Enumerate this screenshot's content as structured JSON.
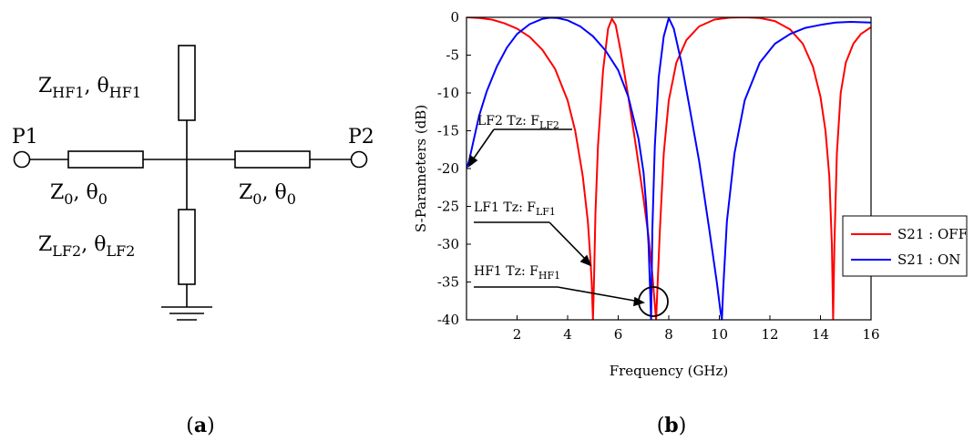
{
  "schematic": {
    "port1": "P1",
    "port2": "P2",
    "stub_hf1": {
      "z": "Z",
      "z_sub": "HF1",
      "sep": ", ",
      "theta": "θ",
      "theta_sub": "HF1"
    },
    "line_left": {
      "z": "Z",
      "z_sub": "0",
      "sep": ", ",
      "theta": "θ",
      "theta_sub": "0"
    },
    "line_right": {
      "z": "Z",
      "z_sub": "0",
      "sep": ", ",
      "theta": "θ",
      "theta_sub": "0"
    },
    "stub_lf2": {
      "z": "Z",
      "z_sub": "LF2",
      "sep": ", ",
      "theta": "θ",
      "theta_sub": "LF2"
    }
  },
  "captions": {
    "a": "a",
    "b": "b",
    "open": "(",
    "close": ")"
  },
  "annotations": {
    "lf2": {
      "text": "LF2 Tz: F",
      "sub": "LF2"
    },
    "lf1": {
      "text": "LF1 Tz: F",
      "sub": "LF1"
    },
    "hf1": {
      "text": "HF1 Tz: F",
      "sub": "HF1"
    }
  },
  "colors": {
    "off": "#ff0000",
    "on": "#0000ff"
  },
  "chart_data": {
    "type": "line",
    "xlabel": "Frequency (GHz)",
    "ylabel": "S-Parameters (dB)",
    "xlim": [
      0,
      16
    ],
    "ylim": [
      -40,
      0
    ],
    "xticks": [
      2,
      4,
      6,
      8,
      10,
      12,
      14,
      16
    ],
    "yticks": [
      0,
      -5,
      -10,
      -15,
      -20,
      -25,
      -30,
      -35,
      -40
    ],
    "grid": false,
    "legend_position": "right",
    "series": [
      {
        "name": "S21 : OFF",
        "color": "#ff0000",
        "x": [
          0.0,
          0.5,
          1.0,
          1.5,
          2.0,
          2.5,
          3.0,
          3.5,
          4.0,
          4.3,
          4.6,
          4.8,
          4.9,
          4.95,
          5.0,
          5.05,
          5.1,
          5.2,
          5.4,
          5.6,
          5.75,
          5.9,
          6.1,
          6.4,
          6.7,
          7.0,
          7.2,
          7.35,
          7.45,
          7.5,
          7.55,
          7.65,
          7.8,
          8.0,
          8.3,
          8.7,
          9.2,
          9.8,
          10.4,
          11.0,
          11.6,
          12.2,
          12.8,
          13.3,
          13.7,
          14.0,
          14.2,
          14.35,
          14.45,
          14.5,
          14.55,
          14.65,
          14.8,
          15.0,
          15.3,
          15.6,
          16.0
        ],
        "y": [
          0.0,
          -0.1,
          -0.3,
          -0.8,
          -1.5,
          -2.6,
          -4.3,
          -6.8,
          -11.0,
          -15.0,
          -21.0,
          -27.0,
          -32.0,
          -35.0,
          -40.0,
          -34.0,
          -26.0,
          -17.0,
          -7.0,
          -1.5,
          -0.2,
          -1.0,
          -4.5,
          -10.5,
          -17.0,
          -24.0,
          -29.0,
          -34.0,
          -38.0,
          -40.0,
          -36.0,
          -28.0,
          -18.0,
          -11.0,
          -6.0,
          -3.0,
          -1.2,
          -0.3,
          -0.05,
          0.0,
          -0.1,
          -0.5,
          -1.6,
          -3.5,
          -6.5,
          -10.5,
          -15.0,
          -21.0,
          -30.0,
          -40.0,
          -30.0,
          -18.0,
          -10.0,
          -6.0,
          -3.5,
          -2.2,
          -1.3
        ]
      },
      {
        "name": "S21 : ON",
        "color": "#0000ff",
        "x": [
          0.0,
          0.1,
          0.3,
          0.5,
          0.8,
          1.2,
          1.6,
          2.0,
          2.5,
          3.0,
          3.3,
          3.6,
          4.0,
          4.5,
          5.0,
          5.5,
          6.0,
          6.4,
          6.8,
          7.0,
          7.1,
          7.2,
          7.25,
          7.3,
          7.35,
          7.45,
          7.6,
          7.8,
          8.0,
          8.2,
          8.5,
          8.8,
          9.2,
          9.6,
          9.9,
          10.05,
          10.1,
          10.15,
          10.3,
          10.6,
          11.0,
          11.6,
          12.2,
          12.8,
          13.4,
          14.0,
          14.6,
          15.2,
          16.0
        ],
        "y": [
          -20.0,
          -19.0,
          -16.0,
          -13.0,
          -9.8,
          -6.5,
          -4.0,
          -2.2,
          -0.9,
          -0.2,
          -0.05,
          -0.1,
          -0.4,
          -1.2,
          -2.5,
          -4.4,
          -7.0,
          -10.5,
          -16.0,
          -20.5,
          -24.5,
          -30.0,
          -35.0,
          -40.0,
          -28.0,
          -17.0,
          -8.0,
          -2.5,
          -0.1,
          -1.5,
          -6.0,
          -11.5,
          -19.0,
          -28.0,
          -35.0,
          -39.0,
          -40.0,
          -36.0,
          -27.0,
          -18.0,
          -11.0,
          -6.0,
          -3.5,
          -2.2,
          -1.4,
          -1.0,
          -0.7,
          -0.6,
          -0.7
        ]
      }
    ]
  }
}
